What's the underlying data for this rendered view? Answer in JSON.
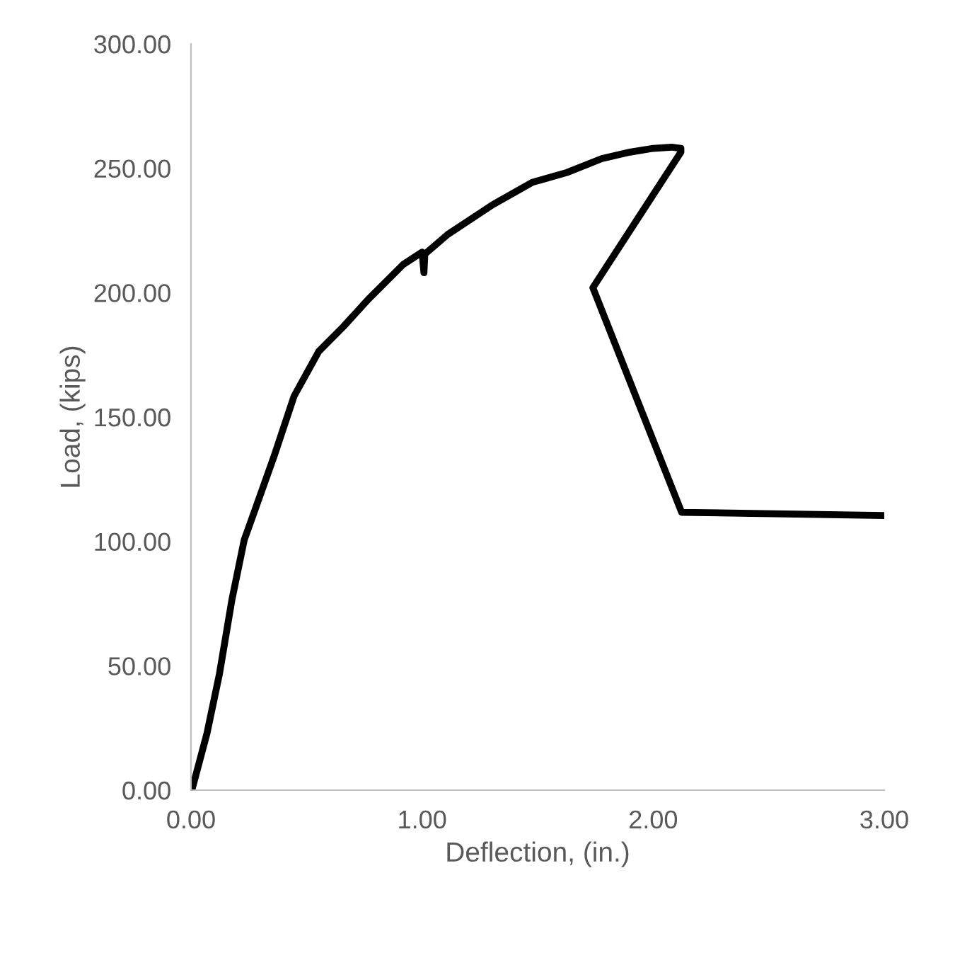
{
  "chart_data": {
    "type": "line",
    "xlabel": "Deflection, (in.)",
    "ylabel": "Load, (kips)",
    "series": [
      {
        "color": "#000000",
        "x": [
          0.0,
          0.005,
          0.069,
          0.123,
          0.177,
          0.23,
          0.284,
          0.36,
          0.446,
          0.553,
          0.66,
          0.768,
          0.918,
          1.0,
          1.008,
          1.012,
          1.111,
          1.305,
          1.476,
          1.627,
          1.778,
          1.9,
          2.0,
          2.08,
          2.12,
          2.12,
          1.739,
          2.123,
          3.0
        ],
        "values": [
          0.0,
          0.5,
          22.8,
          46.7,
          76.5,
          100.5,
          114.5,
          134.4,
          158.4,
          176.4,
          186.4,
          197.4,
          211.3,
          216.3,
          208.0,
          215.5,
          223.4,
          235.3,
          244.3,
          248.3,
          253.9,
          256.5,
          258.0,
          258.5,
          258.0,
          256.5,
          202.0,
          111.7,
          110.4
        ]
      }
    ],
    "xlim": [
      0,
      3
    ],
    "xticks": [
      {
        "value": 0,
        "label": "0.00"
      },
      {
        "value": 1,
        "label": "1.00"
      },
      {
        "value": 2,
        "label": "2.00"
      },
      {
        "value": 3,
        "label": "3.00"
      }
    ],
    "ylim": [
      0,
      300
    ],
    "yticks": [
      {
        "value": 0,
        "label": "0.00"
      },
      {
        "value": 50,
        "label": "50.00"
      },
      {
        "value": 100,
        "label": "100.00"
      },
      {
        "value": 150,
        "label": "150.00"
      },
      {
        "value": 200,
        "label": "200.00"
      },
      {
        "value": 250,
        "label": "250.00"
      },
      {
        "value": 300,
        "label": "300.00"
      }
    ],
    "grid": false,
    "marker": "none",
    "line_style": "solid"
  }
}
